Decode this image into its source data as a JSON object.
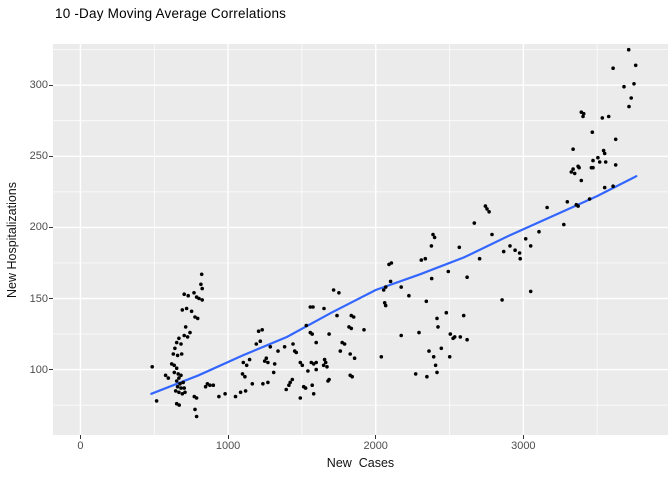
{
  "title": "10 -Day Moving Average Correlations",
  "colors": {
    "panel_bg": "#EBEBEB",
    "grid_major": "#FFFFFF",
    "grid_minor": "#F5F5F5",
    "point": "#000000",
    "smooth_line": "#3366FF",
    "tick_text": "#4D4D4D",
    "tick_mark": "#333333",
    "axis_title_text": "#111111",
    "title_text": "#000000",
    "outer_bg": "#FFFFFF"
  },
  "chart_data": {
    "type": "scatter",
    "title": "10 -Day Moving Average Correlations",
    "xlabel": "New  Cases",
    "ylabel": "New Hospitalizations",
    "legend_position": "none",
    "grid": "on",
    "xlim": [
      -186,
      3980
    ],
    "ylim": [
      54,
      329
    ],
    "x_ticks": [
      0,
      1000,
      2000,
      3000
    ],
    "y_ticks": [
      100,
      150,
      200,
      250,
      300
    ],
    "x_minor": [
      500,
      1500,
      2500,
      3500
    ],
    "y_minor": [
      75,
      125,
      175,
      225,
      275,
      325
    ],
    "point_radius": 1.8,
    "points": [
      [
        486,
        102
      ],
      [
        516,
        78
      ],
      [
        577,
        96
      ],
      [
        595,
        94
      ],
      [
        618,
        104
      ],
      [
        629,
        111
      ],
      [
        635,
        103
      ],
      [
        640,
        115
      ],
      [
        636,
        98
      ],
      [
        645,
        85
      ],
      [
        652,
        119
      ],
      [
        652,
        101
      ],
      [
        652,
        92
      ],
      [
        652,
        76
      ],
      [
        658,
        110
      ],
      [
        658,
        88
      ],
      [
        662,
        97
      ],
      [
        667,
        122
      ],
      [
        667,
        94
      ],
      [
        669,
        75
      ],
      [
        667,
        84
      ],
      [
        674,
        90
      ],
      [
        681,
        118
      ],
      [
        681,
        96
      ],
      [
        681,
        87
      ],
      [
        686,
        111
      ],
      [
        690,
        142
      ],
      [
        690,
        83
      ],
      [
        696,
        91
      ],
      [
        703,
        153
      ],
      [
        703,
        124
      ],
      [
        703,
        87
      ],
      [
        708,
        84
      ],
      [
        713,
        130
      ],
      [
        719,
        143
      ],
      [
        726,
        123
      ],
      [
        730,
        152
      ],
      [
        742,
        126
      ],
      [
        753,
        141
      ],
      [
        769,
        154
      ],
      [
        771,
        81
      ],
      [
        776,
        137
      ],
      [
        776,
        72
      ],
      [
        787,
        151
      ],
      [
        787,
        80
      ],
      [
        787,
        67
      ],
      [
        794,
        136
      ],
      [
        803,
        150
      ],
      [
        816,
        160
      ],
      [
        821,
        167
      ],
      [
        825,
        157
      ],
      [
        825,
        149
      ],
      [
        848,
        88
      ],
      [
        860,
        90
      ],
      [
        877,
        89
      ],
      [
        900,
        89
      ],
      [
        938,
        81
      ],
      [
        980,
        83
      ],
      [
        1050,
        81
      ],
      [
        1085,
        84
      ],
      [
        1098,
        97
      ],
      [
        1114,
        95
      ],
      [
        1119,
        85
      ],
      [
        1126,
        103
      ],
      [
        1103,
        105
      ],
      [
        1146,
        107
      ],
      [
        1164,
        90
      ],
      [
        1191,
        118
      ],
      [
        1207,
        127
      ],
      [
        1218,
        120
      ],
      [
        1231,
        128
      ],
      [
        1236,
        90
      ],
      [
        1248,
        106
      ],
      [
        1259,
        108
      ],
      [
        1270,
        105
      ],
      [
        1270,
        91
      ],
      [
        1286,
        116
      ],
      [
        1309,
        98
      ],
      [
        1316,
        104
      ],
      [
        1338,
        113
      ],
      [
        1383,
        116
      ],
      [
        1394,
        86
      ],
      [
        1412,
        89
      ],
      [
        1421,
        91
      ],
      [
        1435,
        93
      ],
      [
        1440,
        118
      ],
      [
        1451,
        113
      ],
      [
        1462,
        112
      ],
      [
        1489,
        105
      ],
      [
        1489,
        80
      ],
      [
        1503,
        103
      ],
      [
        1512,
        88
      ],
      [
        1525,
        87
      ],
      [
        1530,
        131
      ],
      [
        1541,
        99
      ],
      [
        1557,
        144
      ],
      [
        1557,
        126
      ],
      [
        1564,
        105
      ],
      [
        1570,
        125
      ],
      [
        1570,
        89
      ],
      [
        1575,
        144
      ],
      [
        1580,
        104
      ],
      [
        1580,
        83
      ],
      [
        1597,
        119
      ],
      [
        1597,
        105
      ],
      [
        1597,
        100
      ],
      [
        1647,
        103
      ],
      [
        1650,
        143
      ],
      [
        1654,
        107
      ],
      [
        1661,
        105
      ],
      [
        1670,
        102
      ],
      [
        1677,
        92
      ],
      [
        1684,
        125
      ],
      [
        1684,
        93
      ],
      [
        1715,
        156
      ],
      [
        1738,
        138
      ],
      [
        1751,
        154
      ],
      [
        1760,
        113
      ],
      [
        1773,
        119
      ],
      [
        1789,
        118
      ],
      [
        1819,
        130
      ],
      [
        1827,
        111
      ],
      [
        1827,
        96
      ],
      [
        1835,
        138
      ],
      [
        1835,
        129
      ],
      [
        1841,
        95
      ],
      [
        1851,
        137
      ],
      [
        1857,
        108
      ],
      [
        1921,
        128
      ],
      [
        2038,
        109
      ],
      [
        2054,
        156
      ],
      [
        2061,
        147
      ],
      [
        2068,
        158
      ],
      [
        2068,
        145
      ],
      [
        2090,
        174
      ],
      [
        2101,
        162
      ],
      [
        2106,
        175
      ],
      [
        2173,
        158
      ],
      [
        2173,
        124
      ],
      [
        2225,
        152
      ],
      [
        2271,
        97
      ],
      [
        2293,
        126
      ],
      [
        2309,
        177
      ],
      [
        2336,
        178
      ],
      [
        2343,
        148
      ],
      [
        2347,
        95
      ],
      [
        2361,
        113
      ],
      [
        2377,
        187
      ],
      [
        2388,
        195
      ],
      [
        2399,
        193
      ],
      [
        2379,
        164
      ],
      [
        2393,
        109
      ],
      [
        2406,
        103
      ],
      [
        2415,
        136
      ],
      [
        2415,
        98
      ],
      [
        2422,
        130
      ],
      [
        2444,
        115
      ],
      [
        2478,
        140
      ],
      [
        2492,
        169
      ],
      [
        2501,
        109
      ],
      [
        2505,
        125
      ],
      [
        2524,
        122
      ],
      [
        2535,
        123
      ],
      [
        2566,
        186
      ],
      [
        2573,
        123
      ],
      [
        2596,
        138
      ],
      [
        2619,
        165
      ],
      [
        2619,
        121
      ],
      [
        2668,
        203
      ],
      [
        2704,
        178
      ],
      [
        2743,
        215
      ],
      [
        2754,
        213
      ],
      [
        2768,
        211
      ],
      [
        2788,
        195
      ],
      [
        2856,
        149
      ],
      [
        2867,
        183
      ],
      [
        2910,
        187
      ],
      [
        2944,
        184
      ],
      [
        2975,
        182
      ],
      [
        2979,
        178
      ],
      [
        3016,
        192
      ],
      [
        3050,
        187
      ],
      [
        3050,
        155
      ],
      [
        3106,
        197
      ],
      [
        3161,
        214
      ],
      [
        3274,
        202
      ],
      [
        3298,
        218
      ],
      [
        3359,
        216
      ],
      [
        3371,
        215
      ],
      [
        3449,
        220
      ],
      [
        3325,
        239
      ],
      [
        3337,
        255
      ],
      [
        3337,
        241
      ],
      [
        3348,
        238
      ],
      [
        3371,
        243
      ],
      [
        3378,
        242
      ],
      [
        3393,
        281
      ],
      [
        3393,
        233
      ],
      [
        3404,
        278
      ],
      [
        3409,
        280
      ],
      [
        3461,
        242
      ],
      [
        3467,
        267
      ],
      [
        3472,
        247
      ],
      [
        3472,
        242
      ],
      [
        3505,
        249
      ],
      [
        3517,
        246
      ],
      [
        3535,
        277
      ],
      [
        3544,
        254
      ],
      [
        3551,
        252
      ],
      [
        3551,
        228
      ],
      [
        3558,
        246
      ],
      [
        3578,
        278
      ],
      [
        3608,
        312
      ],
      [
        3608,
        229
      ],
      [
        3626,
        262
      ],
      [
        3626,
        244
      ],
      [
        3682,
        299
      ],
      [
        3714,
        325
      ],
      [
        3716,
        285
      ],
      [
        3731,
        291
      ],
      [
        3750,
        301
      ],
      [
        3761,
        314
      ]
    ],
    "smooth_line": {
      "name": "linear-smooth-trend",
      "points": [
        [
          480,
          83
        ],
        [
          800,
          96
        ],
        [
          1100,
          110
        ],
        [
          1400,
          123
        ],
        [
          1700,
          140
        ],
        [
          2000,
          156
        ],
        [
          2300,
          167
        ],
        [
          2600,
          179
        ],
        [
          2900,
          194
        ],
        [
          3200,
          208
        ],
        [
          3500,
          222
        ],
        [
          3765,
          236
        ]
      ]
    }
  }
}
